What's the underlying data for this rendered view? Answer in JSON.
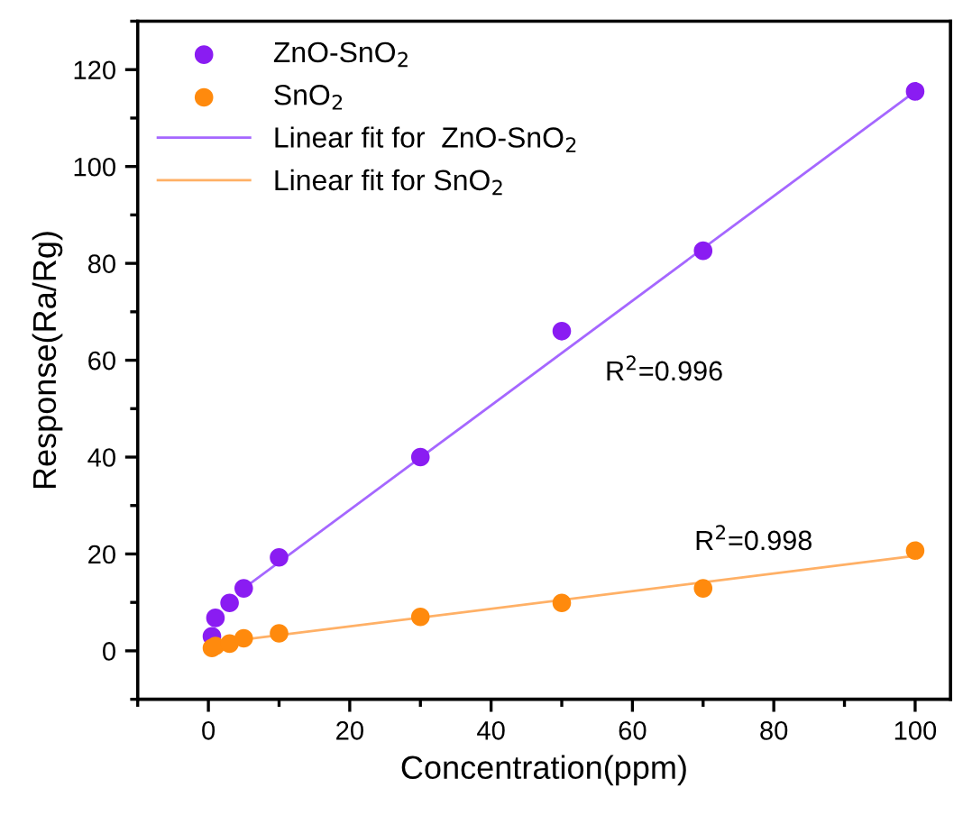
{
  "chart_data": {
    "type": "scatter",
    "xlabel": "Concentration(ppm)",
    "ylabel": "Response(Ra/Rg)",
    "xlim": [
      -10,
      105
    ],
    "ylim": [
      -10,
      130
    ],
    "xticks": [
      0,
      20,
      40,
      60,
      80,
      100
    ],
    "yticks": [
      0,
      20,
      40,
      60,
      80,
      100,
      120
    ],
    "grid": false,
    "legend": "top left",
    "series": [
      {
        "name": "ZnO-SnO$_{2}$",
        "marker": "circle",
        "color": "#8a1cf2",
        "x": [
          0.5,
          1,
          3,
          5,
          10,
          30,
          50,
          70,
          100
        ],
        "values": [
          3.0,
          6.8,
          9.9,
          12.9,
          19.3,
          40,
          66,
          82.6,
          115.5
        ]
      },
      {
        "name": "SnO$_{2}$",
        "marker": "circle",
        "color": "#ff8a0d",
        "x": [
          0.5,
          1,
          3,
          5,
          10,
          30,
          50,
          70,
          100
        ],
        "values": [
          0.6,
          1.0,
          1.5,
          2.6,
          3.6,
          7.0,
          9.9,
          12.9,
          20.7
        ]
      },
      {
        "name": "Linear fit for  ZnO-SnO$_{2}$",
        "type": "line",
        "color": "#a567ff",
        "x": [
          5,
          100
        ],
        "values": [
          12.9,
          115.5
        ]
      },
      {
        "name": "Linear fit for SnO$_{2}$",
        "type": "line",
        "color": "#ffb066",
        "x": [
          1,
          100
        ],
        "values": [
          1.6,
          19.6
        ]
      }
    ],
    "annotations": [
      "R$^{2}$=0.996",
      "R$^{2}$=0.998"
    ]
  }
}
